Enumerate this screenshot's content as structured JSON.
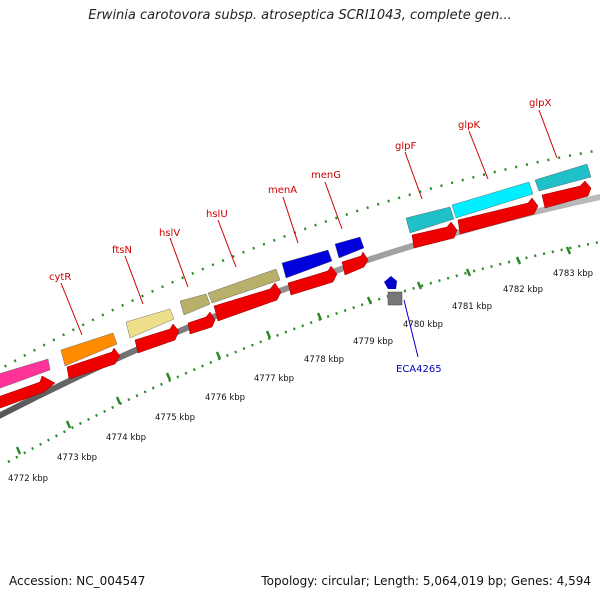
{
  "title": "Erwinia carotovora subsp. atroseptica SCRI1043, complete gen...",
  "footer": {
    "accession": "Accession: NC_004547",
    "summary": "Topology: circular; Length: 5,064,019 bp; Genes: 4,594"
  },
  "colors": {
    "label_red": "#cc0000",
    "label_blue": "#0000bb",
    "tick_green": "#2a8a2a",
    "forward_arrow": "#ee0000",
    "backbone": "#888888"
  },
  "scale_labels": [
    "4772 kbp",
    "4773 kbp",
    "4774 kbp",
    "4775 kbp",
    "4776 kbp",
    "4777 kbp",
    "4778 kbp",
    "4779 kbp",
    "4780 kbp",
    "4781 kbp",
    "4782 kbp",
    "4783 kbp"
  ],
  "genes": [
    {
      "name": "cytR",
      "color": "#ff8c00"
    },
    {
      "name": "ftsN",
      "color": "#eee08a"
    },
    {
      "name": "hslV",
      "color": "#b8b06a"
    },
    {
      "name": "hslU",
      "color": "#b8b06a"
    },
    {
      "name": "menA",
      "color": "#0000dd"
    },
    {
      "name": "menG",
      "color": "#0000dd"
    },
    {
      "name": "glpF",
      "color": "#20c0c8"
    },
    {
      "name": "glpK",
      "color": "#00eeff"
    },
    {
      "name": "glpX",
      "color": "#20c0c8"
    },
    {
      "name": "ECA4265",
      "color": "#0000cc"
    }
  ]
}
